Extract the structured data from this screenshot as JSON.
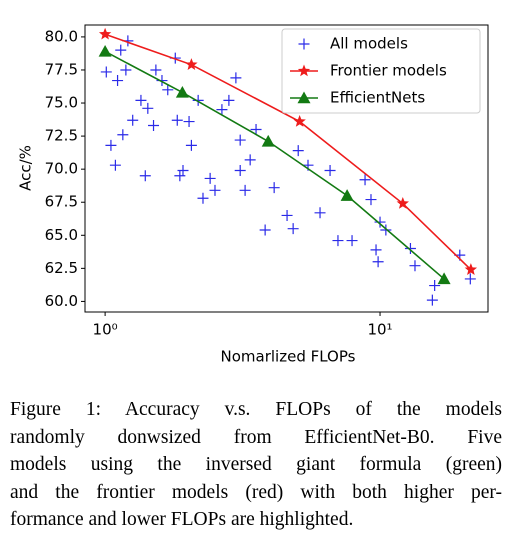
{
  "chart_data": {
    "type": "scatter",
    "xlabel": "Nomarlized FLOPs",
    "ylabel": "Acc/%",
    "xscale": "log",
    "xlim": [
      0.845,
      24.7
    ],
    "ylim": [
      59.2,
      80.9
    ],
    "xticks": [
      {
        "value": 1,
        "label": "10⁰"
      },
      {
        "value": 10,
        "label": "10¹"
      }
    ],
    "yticks": [
      {
        "value": 60,
        "label": "60.0"
      },
      62.5,
      {
        "value": 65,
        "label": "65.0"
      },
      67.5,
      {
        "value": 70,
        "label": "70.0"
      },
      72.5,
      {
        "value": 75,
        "label": "75.0"
      },
      77.5,
      {
        "value": 80,
        "label": "80.0"
      }
    ],
    "legend": "upper right",
    "series": [
      {
        "name": "All models",
        "color": "#2a2ae8",
        "marker": "plus",
        "line": false,
        "x": [
          1.01,
          1.05,
          1.09,
          1.11,
          1.14,
          1.19,
          1.21,
          1.16,
          1.26,
          1.35,
          1.4,
          1.43,
          1.5,
          1.53,
          1.61,
          1.69,
          1.8,
          1.83,
          1.92,
          2.02,
          2.06,
          2.18,
          2.27,
          2.41,
          2.51,
          2.66,
          2.82,
          2.99,
          3.1,
          3.23,
          3.37,
          3.54,
          3.82,
          4.12,
          4.59,
          4.83,
          5.04,
          5.47,
          6.05,
          6.58,
          7.03,
          7.91,
          8.82,
          9.27,
          9.67,
          10.0,
          10.5,
          12.9,
          13.4,
          15.5,
          15.8,
          19.5,
          21.3,
          9.84,
          3.1,
          1.87
        ],
        "values": [
          77.35,
          71.8,
          70.3,
          76.7,
          79.0,
          77.5,
          79.7,
          72.6,
          73.7,
          75.2,
          69.5,
          74.6,
          73.3,
          77.5,
          76.7,
          76.0,
          78.4,
          73.7,
          69.9,
          73.6,
          71.8,
          75.2,
          67.8,
          69.3,
          68.4,
          74.5,
          75.2,
          76.9,
          72.2,
          68.4,
          70.7,
          73.0,
          65.4,
          68.6,
          66.5,
          65.5,
          71.4,
          70.3,
          66.7,
          69.9,
          64.6,
          64.6,
          69.2,
          67.7,
          63.9,
          66.0,
          65.4,
          64.0,
          62.7,
          60.1,
          61.2,
          63.5,
          61.7,
          63.0,
          69.9,
          69.5
        ]
      },
      {
        "name": "Frontier models",
        "color": "#ee1c1c",
        "marker": "star",
        "line": true,
        "x": [
          1.0,
          2.06,
          5.1,
          12.1,
          21.4
        ],
        "values": [
          80.2,
          77.9,
          73.6,
          67.4,
          62.4
        ]
      },
      {
        "name": "EfficientNets",
        "color": "#137a13",
        "marker": "triangle",
        "line": true,
        "x": [
          1.0,
          1.91,
          3.92,
          7.59,
          17.1
        ],
        "values": [
          78.9,
          75.8,
          72.1,
          68.0,
          61.7
        ]
      }
    ]
  },
  "caption": {
    "lines": [
      "Figure 1: Accuracy v.s. FLOPs of the models",
      "randomly donwsized from EfficientNet-B0. Five",
      "models using the inversed giant formula (green)",
      "and the frontier models (red) with both higher per-",
      "formance and lower FLOPs are highlighted."
    ]
  }
}
